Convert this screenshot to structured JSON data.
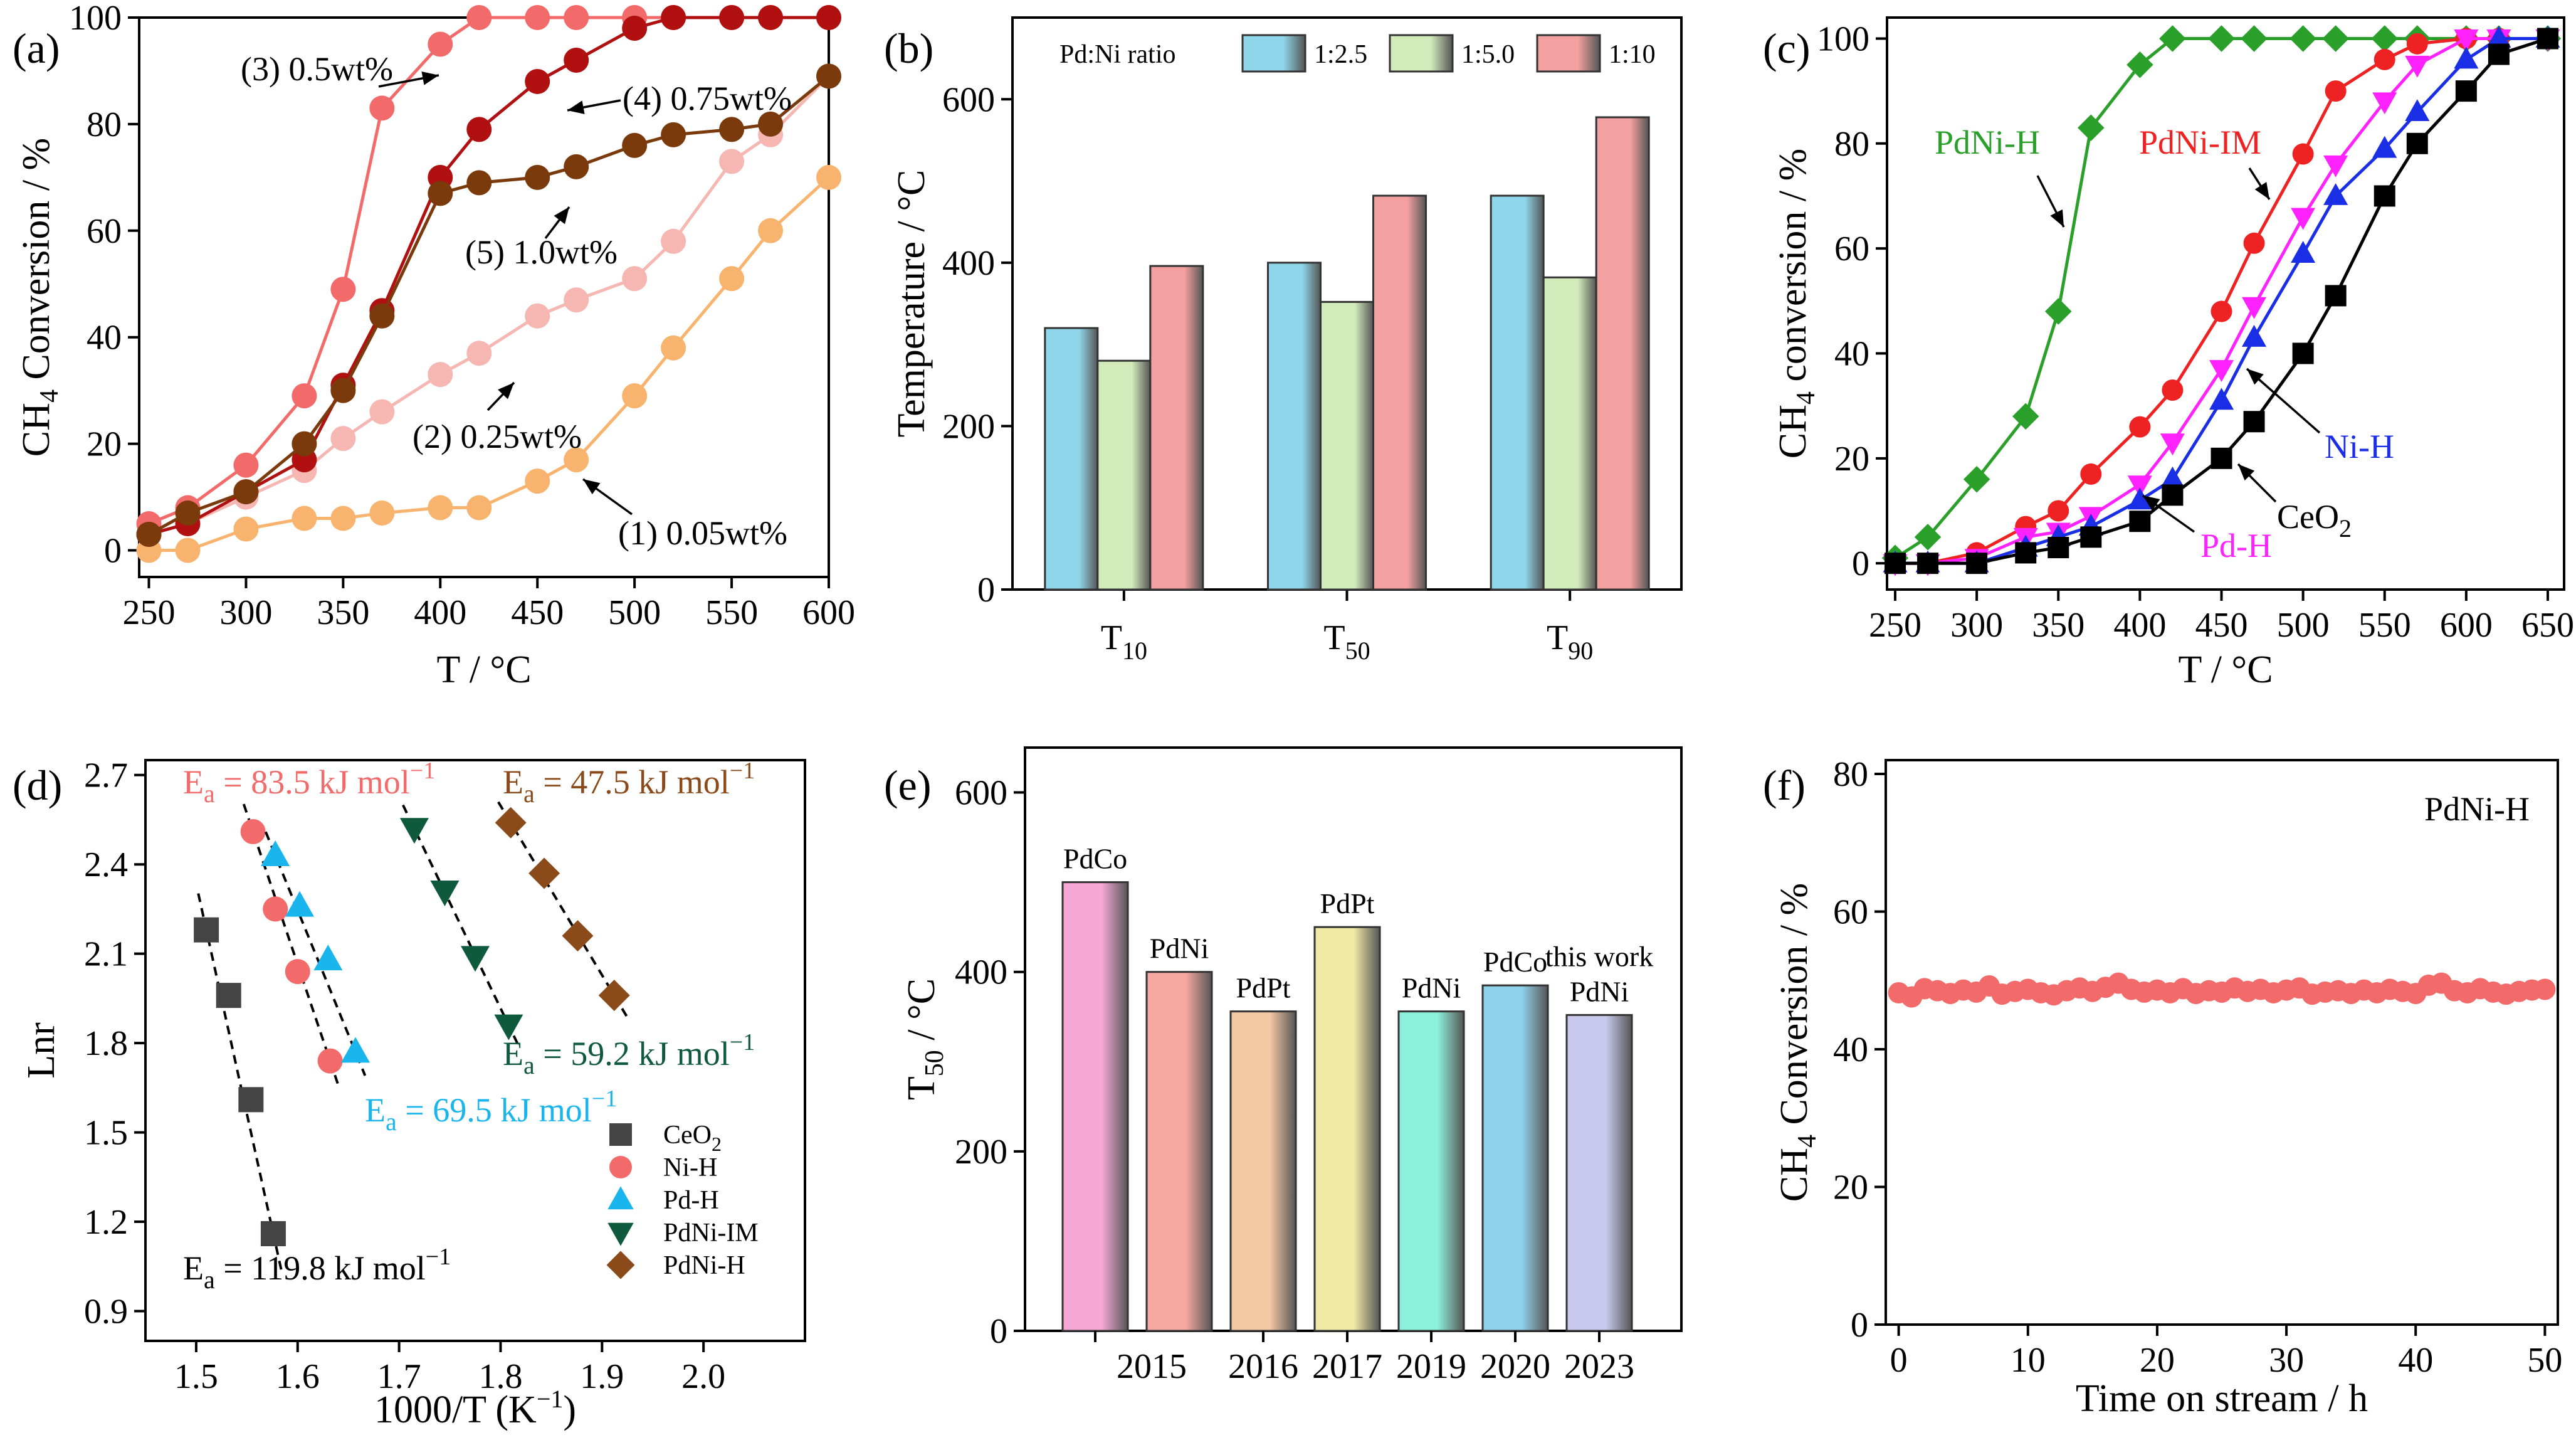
{
  "figure": {
    "colors": {
      "axis": "#000000"
    }
  },
  "chart_data": [
    {
      "id": "a",
      "panel_label": "(a)",
      "type": "line",
      "xlabel": "T / °C",
      "ylabel": "CH4 Conversion / %",
      "xlim": [
        245,
        600
      ],
      "ylim": [
        -5,
        100
      ],
      "xticks": [
        250,
        300,
        350,
        400,
        450,
        500,
        550,
        600
      ],
      "yticks": [
        0,
        20,
        40,
        60,
        80,
        100
      ],
      "series": [
        {
          "name": "(1) 0.05wt%",
          "color": "#f8b46e",
          "x": [
            250,
            270,
            300,
            330,
            350,
            370,
            400,
            420,
            450,
            470,
            500,
            520,
            550,
            570,
            600
          ],
          "y": [
            0,
            0,
            4,
            6,
            6,
            7,
            8,
            8,
            13,
            17,
            29,
            38,
            51,
            60,
            70
          ]
        },
        {
          "name": "(2) 0.25wt%",
          "color": "#f6b7b3",
          "x": [
            250,
            270,
            300,
            330,
            350,
            370,
            400,
            420,
            450,
            470,
            500,
            520,
            550,
            570,
            600
          ],
          "y": [
            3,
            5,
            10,
            15,
            21,
            26,
            33,
            37,
            44,
            47,
            51,
            58,
            73,
            78,
            89
          ]
        },
        {
          "name": "(3) 0.5wt%",
          "color": "#f26a6a",
          "x": [
            250,
            270,
            300,
            330,
            350,
            370,
            400,
            420,
            450,
            470,
            500,
            520,
            550,
            570,
            600
          ],
          "y": [
            5,
            8,
            16,
            29,
            49,
            83,
            95,
            100,
            100,
            100,
            100,
            100,
            100,
            100,
            100
          ]
        },
        {
          "name": "(4) 0.75wt%",
          "color": "#b01010",
          "x": [
            250,
            270,
            300,
            330,
            350,
            370,
            400,
            420,
            450,
            470,
            500,
            520,
            550,
            570,
            600
          ],
          "y": [
            3,
            5,
            11,
            17,
            31,
            45,
            70,
            79,
            88,
            92,
            98,
            100,
            100,
            100,
            100
          ]
        },
        {
          "name": "(5) 1.0wt%",
          "color": "#7a3a0c",
          "x": [
            250,
            270,
            300,
            330,
            350,
            370,
            400,
            420,
            450,
            470,
            500,
            520,
            550,
            570,
            600
          ],
          "y": [
            3,
            7,
            11,
            20,
            30,
            44,
            67,
            69,
            70,
            72,
            76,
            78,
            79,
            80,
            89
          ]
        }
      ]
    },
    {
      "id": "b",
      "panel_label": "(b)",
      "type": "bar",
      "ylabel": "Temperature / °C",
      "legend_title": "Pd:Ni ratio",
      "categories": [
        "T10",
        "T50",
        "T90"
      ],
      "category_main": [
        "T",
        "T",
        "T"
      ],
      "category_sub": [
        "10",
        "50",
        "90"
      ],
      "ylim": [
        0,
        700
      ],
      "yticks": [
        0,
        200,
        400,
        600
      ],
      "series": [
        {
          "name": "1:2.5",
          "color": "#8fd6ea",
          "values": [
            320,
            400,
            482
          ]
        },
        {
          "name": "1:5.0",
          "color": "#d2ebbb",
          "values": [
            280,
            352,
            382
          ]
        },
        {
          "name": "1:10",
          "color": "#f3a0a0",
          "values": [
            396,
            482,
            578
          ]
        }
      ]
    },
    {
      "id": "c",
      "panel_label": "(c)",
      "type": "line",
      "xlabel": "T / °C",
      "ylabel": "CH4 conversion / %",
      "xlim": [
        245,
        660
      ],
      "ylim": [
        -5,
        104
      ],
      "xticks": [
        250,
        300,
        350,
        400,
        450,
        500,
        550,
        600,
        650
      ],
      "yticks": [
        0,
        20,
        40,
        60,
        80,
        100
      ],
      "series": [
        {
          "name": "PdNi-H",
          "color": "#2aa02a",
          "marker": "diamond",
          "x": [
            250,
            270,
            300,
            330,
            350,
            370,
            400,
            420,
            450,
            470,
            500,
            520,
            550,
            570,
            600,
            620,
            650
          ],
          "y": [
            1,
            5,
            16,
            28,
            48,
            83,
            95,
            100,
            100,
            100,
            100,
            100,
            100,
            100,
            100,
            100,
            100
          ]
        },
        {
          "name": "PdNi-IM",
          "color": "#ee2222",
          "marker": "circle",
          "x": [
            250,
            270,
            300,
            330,
            350,
            370,
            400,
            420,
            450,
            470,
            500,
            520,
            550,
            570,
            600,
            620,
            650
          ],
          "y": [
            0,
            0,
            2,
            7,
            10,
            17,
            26,
            33,
            48,
            61,
            78,
            90,
            96,
            99,
            100,
            100,
            100
          ]
        },
        {
          "name": "Pd-H",
          "color": "#ff22ff",
          "marker": "triangle-down",
          "x": [
            250,
            270,
            300,
            330,
            350,
            370,
            400,
            420,
            450,
            470,
            500,
            520,
            550,
            570,
            600,
            620,
            650
          ],
          "y": [
            0,
            0,
            1,
            5,
            6,
            9,
            15,
            23,
            37,
            49,
            66,
            76,
            88,
            95,
            100,
            100,
            100
          ]
        },
        {
          "name": "Ni-H",
          "color": "#1a2ee6",
          "marker": "triangle-up",
          "x": [
            250,
            270,
            300,
            330,
            350,
            370,
            400,
            420,
            450,
            470,
            500,
            520,
            550,
            570,
            600,
            620,
            650
          ],
          "y": [
            0,
            0,
            0,
            3,
            5,
            7,
            12,
            16,
            31,
            43,
            59,
            70,
            79,
            86,
            96,
            100,
            100
          ]
        },
        {
          "name": "CeO2",
          "color": "#000000",
          "marker": "square",
          "x": [
            250,
            270,
            300,
            330,
            350,
            370,
            400,
            420,
            450,
            470,
            500,
            520,
            550,
            570,
            600,
            620,
            650
          ],
          "y": [
            0,
            0,
            0,
            2,
            3,
            5,
            8,
            13,
            20,
            27,
            40,
            51,
            70,
            80,
            90,
            97,
            100
          ]
        }
      ],
      "labels": [
        "PdNi-H",
        "PdNi-IM",
        "Ni-H",
        "CeO",
        "2",
        "Pd-H"
      ]
    },
    {
      "id": "d",
      "panel_label": "(d)",
      "type": "scatter",
      "xlabel": "1000/T (K",
      "xlabel_sup": "−1",
      "xlabel_end": ")",
      "ylabel": "Lnr",
      "xlim": [
        1.45,
        2.1
      ],
      "ylim": [
        0.8,
        2.75
      ],
      "xticks": [
        1.5,
        1.6,
        1.7,
        1.8,
        1.9,
        2.0
      ],
      "xtick_labels": [
        "1.5",
        "1.6",
        "1.7",
        "1.8",
        "1.9",
        "2.0"
      ],
      "yticks": [
        0.9,
        1.2,
        1.5,
        1.8,
        2.1,
        2.4,
        2.7
      ],
      "ytick_labels": [
        "0.9",
        "1.2",
        "1.5",
        "1.8",
        "2.1",
        "2.4",
        "2.7"
      ],
      "ea_prefix": "E",
      "ea_sub": "a",
      "ea_unit": "kJ mol",
      "ea_unit_sup": "−1",
      "series": [
        {
          "name": "CeO",
          "name_sub": "2",
          "color": "#444444",
          "marker": "square",
          "x": [
            1.51,
            1.532,
            1.554,
            1.576
          ],
          "y": [
            2.18,
            1.96,
            1.61,
            1.16
          ],
          "ea": "119.8"
        },
        {
          "name": "Ni-H",
          "name_sub": "",
          "color": "#f26a6a",
          "marker": "circle",
          "x": [
            1.556,
            1.578,
            1.6,
            1.632
          ],
          "y": [
            2.51,
            2.25,
            2.04,
            1.74
          ],
          "ea": "83.5"
        },
        {
          "name": "Pd-H",
          "name_sub": "",
          "color": "#1ab5ec",
          "marker": "triangle-up",
          "x": [
            1.578,
            1.602,
            1.63,
            1.657
          ],
          "y": [
            2.43,
            2.26,
            2.08,
            1.77
          ],
          "ea": "69.5"
        },
        {
          "name": "PdNi-IM",
          "name_sub": "",
          "color": "#0f5a3d",
          "marker": "triangle-down",
          "x": [
            1.715,
            1.745,
            1.775,
            1.808
          ],
          "y": [
            2.52,
            2.31,
            2.09,
            1.86
          ],
          "ea": "59.2"
        },
        {
          "name": "PdNi-H",
          "name_sub": "",
          "color": "#8b4a1a",
          "marker": "diamond",
          "x": [
            1.81,
            1.843,
            1.876,
            1.912
          ],
          "y": [
            2.54,
            2.37,
            2.16,
            1.96
          ],
          "ea": "47.5"
        }
      ]
    },
    {
      "id": "e",
      "panel_label": "(e)",
      "type": "bar",
      "ylabel": "T",
      "ylabel_sub": "50",
      "ylabel_end": " / °C",
      "ylim": [
        0,
        650
      ],
      "yticks": [
        0,
        200,
        400,
        600
      ],
      "categories": [
        "2015",
        "",
        "2016",
        "2017",
        "2019",
        "2020",
        "2023"
      ],
      "bar_labels": [
        "PdCo",
        "PdNi",
        "PdPt",
        "PdPt",
        "PdNi",
        "PdCo",
        "PdNi"
      ],
      "extra_label": "this work",
      "values": [
        500,
        400,
        356,
        450,
        356,
        385,
        352
      ],
      "colors": [
        "#f7a8d6",
        "#f6a9a0",
        "#f5c8a4",
        "#f1e8a6",
        "#8cf0da",
        "#8fd2ec",
        "#c9c9ee"
      ]
    },
    {
      "id": "f",
      "panel_label": "(f)",
      "type": "scatter",
      "xlabel": "Time on stream / h",
      "ylabel": "CH4 Conversion / %",
      "annotation": "PdNi-H",
      "color": "#f26a6a",
      "xlim": [
        -1,
        51
      ],
      "ylim": [
        0,
        82
      ],
      "xticks": [
        0,
        10,
        20,
        30,
        40,
        50
      ],
      "yticks": [
        0,
        20,
        40,
        60,
        80
      ],
      "x": [
        0,
        1,
        2,
        3,
        4,
        5,
        6,
        7,
        8,
        9,
        10,
        11,
        12,
        13,
        14,
        15,
        16,
        17,
        18,
        19,
        20,
        21,
        22,
        23,
        24,
        25,
        26,
        27,
        28,
        29,
        30,
        31,
        32,
        33,
        34,
        35,
        36,
        37,
        38,
        39,
        40,
        41,
        42,
        43,
        44,
        45,
        46,
        47,
        48,
        49,
        50
      ],
      "y": [
        48.2,
        47.6,
        48.8,
        48.5,
        48.1,
        48.6,
        48.3,
        49.2,
        48.0,
        48.4,
        48.7,
        48.2,
        47.9,
        48.5,
        48.9,
        48.4,
        49.0,
        49.6,
        48.7,
        48.3,
        48.6,
        48.2,
        48.8,
        48.1,
        48.5,
        48.3,
        48.9,
        48.4,
        48.7,
        48.2,
        48.6,
        48.9,
        48.0,
        48.3,
        48.5,
        48.1,
        48.6,
        48.2,
        48.7,
        48.4,
        48.1,
        49.3,
        49.6,
        48.5,
        48.2,
        48.8,
        48.3,
        48.0,
        48.4,
        48.6,
        48.7
      ]
    }
  ]
}
